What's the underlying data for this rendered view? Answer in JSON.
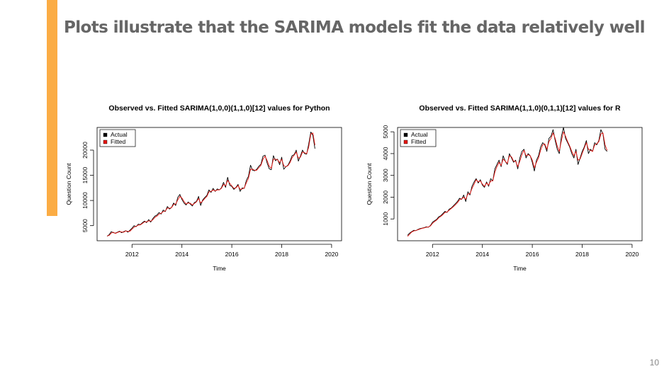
{
  "slide": {
    "title": "Plots illustrate that the SARIMA models fit the data relatively well",
    "page_number": "10",
    "accent_color": "#fbac44"
  },
  "chart_data": [
    {
      "type": "line",
      "title": "Observed vs. Fitted SARIMA(1,0,0)(1,1,0)[12] values for Python",
      "xlabel": "Time",
      "ylabel": "Question Count",
      "xlim": [
        2010.6,
        2020.4
      ],
      "ylim": [
        2000,
        24500
      ],
      "xticks": [
        2012,
        2014,
        2016,
        2018,
        2020
      ],
      "yticks": [
        5000,
        10000,
        15000,
        20000
      ],
      "grid": false,
      "legend": "top-left",
      "series": [
        {
          "name": "Actual",
          "color": "#000000",
          "x_start": 2011.0,
          "x_step": 0.08333,
          "values": [
            2900,
            3200,
            3800,
            3600,
            3500,
            3700,
            3900,
            3600,
            3800,
            4000,
            3700,
            4100,
            4500,
            5000,
            4800,
            5300,
            5200,
            5600,
            5900,
            5600,
            6200,
            5700,
            6400,
            6900,
            7100,
            7600,
            7300,
            8100,
            7800,
            8800,
            8300,
            8600,
            9500,
            9000,
            10600,
            11200,
            10200,
            9500,
            9100,
            9700,
            9300,
            8900,
            9600,
            9800,
            10800,
            9000,
            10100,
            10600,
            11000,
            12100,
            11600,
            12400,
            11800,
            12300,
            12100,
            12500,
            13600,
            12600,
            14600,
            13000,
            12800,
            12200,
            12600,
            13200,
            11800,
            12500,
            12400,
            14000,
            14800,
            17000,
            16000,
            15900,
            16200,
            16800,
            17200,
            18800,
            19000,
            17400,
            16300,
            16100,
            18900,
            17900,
            18200,
            17100,
            18600,
            16200,
            16700,
            17000,
            17800,
            18900,
            19100,
            20000,
            17800,
            18800,
            20000,
            19300,
            19200,
            21200,
            23600,
            22900,
            20300
          ]
        },
        {
          "name": "Fitted",
          "color": "#e8130f",
          "x_start": 2011.0,
          "x_step": 0.08333,
          "values": [
            2950,
            3050,
            3500,
            3700,
            3450,
            3650,
            3800,
            3750,
            3700,
            3950,
            3850,
            3900,
            4300,
            4700,
            4900,
            5100,
            5150,
            5450,
            5750,
            5750,
            5950,
            5900,
            6150,
            6650,
            6900,
            7300,
            7450,
            7800,
            7900,
            8500,
            8450,
            8550,
            9200,
            9300,
            10100,
            10800,
            10500,
            9800,
            9300,
            9500,
            9450,
            9100,
            9400,
            9700,
            10400,
            9500,
            9900,
            10400,
            10800,
            11700,
            11800,
            12100,
            11900,
            12100,
            12100,
            12400,
            13200,
            12900,
            14000,
            13400,
            12900,
            12400,
            12500,
            13000,
            12200,
            12300,
            12500,
            13500,
            14400,
            16200,
            16200,
            16000,
            16000,
            16500,
            17000,
            18200,
            18800,
            17900,
            16800,
            16400,
            18200,
            18200,
            18100,
            17500,
            18200,
            16900,
            16700,
            16900,
            17500,
            18500,
            19000,
            19600,
            18400,
            18600,
            19600,
            19500,
            19300,
            20600,
            23200,
            23400,
            21000
          ]
        }
      ]
    },
    {
      "type": "line",
      "title": "Observed vs. Fitted SARIMA(1,1,0)(0,1,1)[12] values for R",
      "xlabel": "Time",
      "ylabel": "Question Count",
      "xlim": [
        2010.6,
        2020.4
      ],
      "ylim": [
        0,
        5200
      ],
      "xticks": [
        2012,
        2014,
        2016,
        2018,
        2020
      ],
      "yticks": [
        1000,
        2000,
        3000,
        4000,
        5000
      ],
      "grid": false,
      "legend": "top-left",
      "series": [
        {
          "name": "Actual",
          "color": "#000000",
          "x_start": 2011.0,
          "x_step": 0.08333,
          "values": [
            250,
            350,
            420,
            480,
            460,
            520,
            560,
            580,
            600,
            640,
            620,
            700,
            850,
            920,
            980,
            1100,
            1150,
            1250,
            1350,
            1300,
            1450,
            1500,
            1600,
            1700,
            1800,
            1950,
            1900,
            2100,
            1800,
            2250,
            2100,
            2500,
            2700,
            2850,
            2650,
            2800,
            2550,
            2450,
            2700,
            2500,
            2850,
            2750,
            3300,
            3500,
            3700,
            3400,
            3900,
            3650,
            3500,
            4000,
            3800,
            3600,
            3700,
            3300,
            3800,
            4100,
            4200,
            3800,
            4000,
            3900,
            3600,
            3200,
            3700,
            3900,
            4300,
            4500,
            4400,
            4100,
            4700,
            4800,
            5100,
            4600,
            4200,
            4000,
            4800,
            5200,
            4700,
            4500,
            4300,
            4000,
            3800,
            4200,
            3500,
            3800,
            4100,
            4300,
            4600,
            4000,
            4200,
            4100,
            4500,
            4400,
            4600,
            5100,
            4900,
            4200,
            4100
          ]
        },
        {
          "name": "Fitted",
          "color": "#e8130f",
          "x_start": 2011.0,
          "x_step": 0.08333,
          "values": [
            200,
            300,
            400,
            450,
            470,
            500,
            540,
            570,
            590,
            620,
            630,
            680,
            800,
            880,
            950,
            1050,
            1120,
            1200,
            1300,
            1320,
            1400,
            1480,
            1560,
            1650,
            1750,
            1880,
            1920,
            2000,
            1900,
            2150,
            2150,
            2400,
            2600,
            2800,
            2700,
            2750,
            2600,
            2500,
            2650,
            2550,
            2750,
            2750,
            3150,
            3400,
            3600,
            3450,
            3750,
            3650,
            3550,
            3900,
            3850,
            3650,
            3650,
            3400,
            3650,
            3950,
            4150,
            3900,
            3950,
            3900,
            3700,
            3350,
            3600,
            3800,
            4150,
            4400,
            4450,
            4200,
            4550,
            4700,
            4950,
            4700,
            4350,
            4100,
            4600,
            5000,
            4800,
            4550,
            4350,
            4100,
            3900,
            4100,
            3700,
            3750,
            4000,
            4250,
            4500,
            4200,
            4150,
            4100,
            4400,
            4450,
            4550,
            4900,
            4950,
            4400,
            4150
          ]
        }
      ]
    }
  ]
}
